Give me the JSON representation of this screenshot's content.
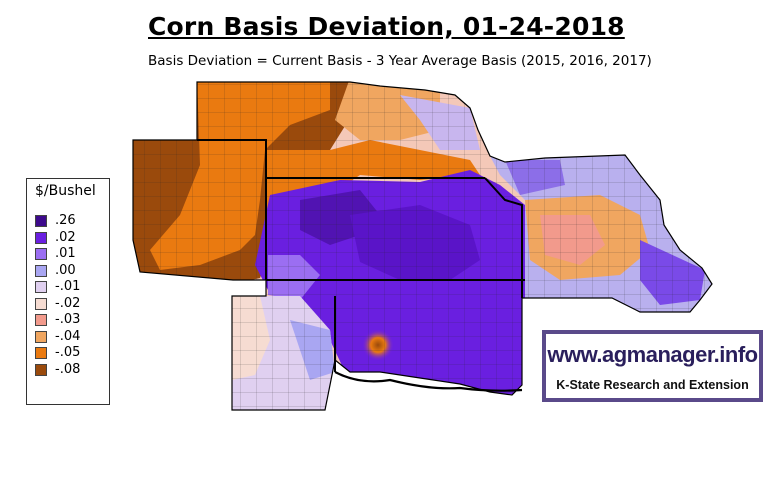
{
  "header": {
    "title": "Corn Basis Deviation, 01-24-2018",
    "subtitle": "Basis Deviation = Current Basis - 3 Year Average Basis (2015, 2016, 2017)"
  },
  "legend": {
    "title": "$/Bushel",
    "items": [
      {
        "label": ".26",
        "color": "#3d0a8c"
      },
      {
        "label": ".02",
        "color": "#6a1fe0"
      },
      {
        "label": ".01",
        "color": "#9b6ef2"
      },
      {
        "label": ".00",
        "color": "#a9a6f2"
      },
      {
        "label": "-.01",
        "color": "#e0d0f0"
      },
      {
        "label": "-.02",
        "color": "#f6dcd2"
      },
      {
        "label": "-.03",
        "color": "#f29a8c"
      },
      {
        "label": "-.04",
        "color": "#f0a660"
      },
      {
        "label": "-.05",
        "color": "#ea7a10"
      },
      {
        "label": "-.08",
        "color": "#9a4a0c"
      }
    ]
  },
  "logo": {
    "url_text": "www.agmanager.info",
    "org_text": "K-State Research and Extension",
    "border_color": "#5a4a8a"
  }
}
